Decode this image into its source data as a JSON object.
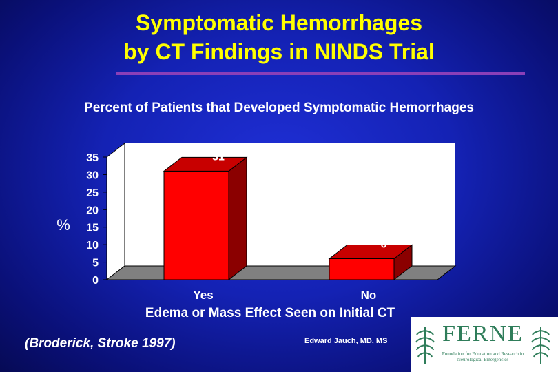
{
  "title_line1": "Symptomatic Hemorrhages",
  "title_line2": "by CT Findings in NINDS Trial",
  "citation": "(Broderick, Stroke 1997)",
  "author": "Edward Jauch, MD, MS",
  "logo": {
    "wordmark": "FERNE",
    "tagline": "Foundation for Education and Research in Neurological Emergencies"
  },
  "colors": {
    "title": "#ffff00",
    "bar_front": "#ff0000",
    "bar_side": "#8b0000",
    "bar_top": "#c80000",
    "plot_wall": "#ffffff",
    "plot_floor": "#808080"
  },
  "chart_data": {
    "type": "bar",
    "title": "Percent of Patients that Developed Symptomatic Hemorrhages",
    "xlabel": "Edema or Mass Effect Seen on Initial CT",
    "ylabel": "%",
    "categories": [
      "Yes",
      "No"
    ],
    "values": [
      31,
      6
    ],
    "data_labels": [
      "31",
      "6"
    ],
    "ylim": [
      0,
      35
    ],
    "yticks": [
      0,
      5,
      10,
      15,
      20,
      25,
      30,
      35
    ],
    "grid": false,
    "legend": "none",
    "style": "3d"
  }
}
